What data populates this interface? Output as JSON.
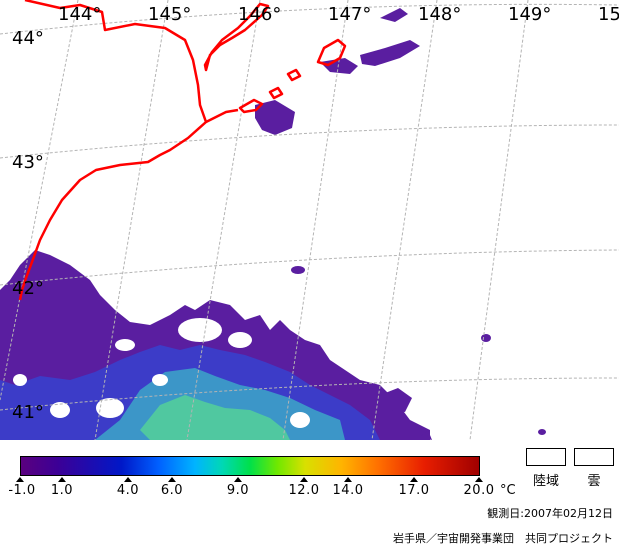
{
  "map": {
    "lon_labels": [
      "144°",
      "145°",
      "146°",
      "147°",
      "148°",
      "149°",
      "15"
    ],
    "lat_labels": [
      "44°",
      "43°",
      "42°",
      "41°"
    ],
    "colors": {
      "coast": "#ff0000",
      "grid": "#b4b4b4",
      "sst_deep": "#5a1ea0",
      "sst_mid": "#3c3cc8",
      "sst_warm": "#3c96c8",
      "sst_warmest": "#50c8a0"
    }
  },
  "legend": {
    "tick_labels": [
      "-1.0",
      "1.0",
      "4.0",
      "6.0",
      "9.0",
      "12.0",
      "14.0",
      "17.0",
      "20.0"
    ],
    "unit": "°C",
    "land_label": "陸域",
    "cloud_label": "雲",
    "observation_date": "観測日:2007年02月12日",
    "credit": "岩手県／宇宙開発事業団　共同プロジェクト"
  }
}
